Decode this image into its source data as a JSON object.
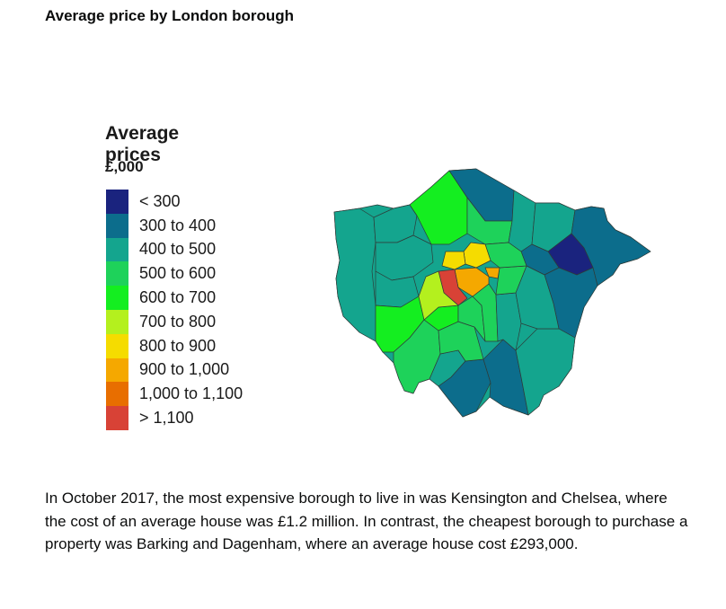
{
  "page": {
    "title": "Average price by London borough",
    "paragraph": "In October 2017, the most expensive borough to live in was Kensington and Chelsea, where the cost of an average house was £1.2 million. In contrast, the cheapest borough to purchase a property was Barking and Dagenham, where an average house cost £293,000."
  },
  "map": {
    "legend_title": "Average prices",
    "legend_unit": "£,000",
    "bins": [
      {
        "label": "< 300",
        "color": "#1a237e"
      },
      {
        "label": "300 to 400",
        "color": "#0c6d8c"
      },
      {
        "label": "400 to 500",
        "color": "#14a58e"
      },
      {
        "label": "500 to 600",
        "color": "#1ed25a"
      },
      {
        "label": "600 to 700",
        "color": "#14ee20"
      },
      {
        "label": "700 to 800",
        "color": "#b4f01e"
      },
      {
        "label": "800 to 900",
        "color": "#f5dc00"
      },
      {
        "label": "900 to 1,000",
        "color": "#f5a800"
      },
      {
        "label": "1,000 to 1,100",
        "color": "#e86e00"
      },
      {
        "label": "> 1,100",
        "color": "#d84236"
      }
    ]
  }
}
